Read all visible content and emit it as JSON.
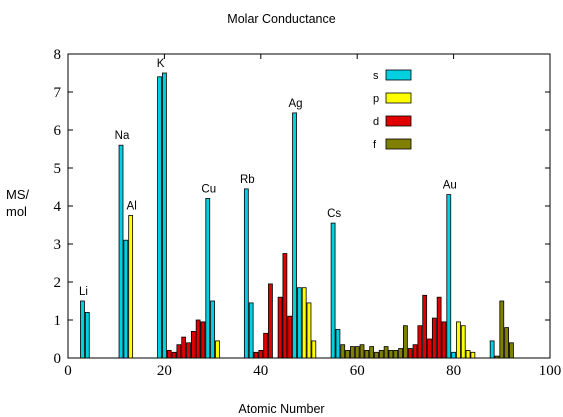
{
  "chart_data": {
    "type": "bar",
    "title": "Molar Conductance",
    "xlabel": "Atomic Number",
    "ylabel": [
      "MS/",
      "mol"
    ],
    "xlim": [
      0,
      100
    ],
    "ylim": [
      0,
      8
    ],
    "xticks": [
      0,
      20,
      40,
      60,
      80,
      100
    ],
    "yticks": [
      0,
      1,
      2,
      3,
      4,
      5,
      6,
      7,
      8
    ],
    "grid": false,
    "legend_position": "top-right",
    "colors": {
      "s": "#00d0e0",
      "p": "#ffff00",
      "d": "#e00000",
      "f": "#808000"
    },
    "series": [
      {
        "name": "s",
        "points": [
          [
            3,
            1.5
          ],
          [
            4,
            1.2
          ],
          [
            11,
            5.6
          ],
          [
            12,
            3.1
          ],
          [
            19,
            7.4
          ],
          [
            20,
            7.5
          ],
          [
            29,
            4.2
          ],
          [
            30,
            1.5
          ],
          [
            37,
            4.45
          ],
          [
            38,
            1.45
          ],
          [
            47,
            6.45
          ],
          [
            48,
            1.85
          ],
          [
            55,
            3.55
          ],
          [
            56,
            0.75
          ],
          [
            79,
            4.3
          ],
          [
            80,
            0.15
          ],
          [
            88,
            0.45
          ]
        ]
      },
      {
        "name": "p",
        "points": [
          [
            13,
            3.75
          ],
          [
            31,
            0.45
          ],
          [
            49,
            1.85
          ],
          [
            50,
            1.45
          ],
          [
            51,
            0.45
          ],
          [
            81,
            0.95
          ],
          [
            82,
            0.85
          ],
          [
            83,
            0.2
          ],
          [
            84,
            0.15
          ]
        ]
      },
      {
        "name": "d",
        "points": [
          [
            21,
            0.2
          ],
          [
            22,
            0.15
          ],
          [
            23,
            0.35
          ],
          [
            24,
            0.55
          ],
          [
            25,
            0.4
          ],
          [
            26,
            0.7
          ],
          [
            27,
            1.0
          ],
          [
            28,
            0.95
          ],
          [
            39,
            0.15
          ],
          [
            40,
            0.2
          ],
          [
            41,
            0.65
          ],
          [
            42,
            1.95
          ],
          [
            44,
            1.6
          ],
          [
            45,
            2.75
          ],
          [
            46,
            1.1
          ],
          [
            71,
            0.25
          ],
          [
            72,
            0.35
          ],
          [
            73,
            0.85
          ],
          [
            74,
            1.65
          ],
          [
            75,
            0.5
          ],
          [
            76,
            1.05
          ],
          [
            77,
            1.6
          ],
          [
            78,
            0.95
          ]
        ]
      },
      {
        "name": "f",
        "points": [
          [
            57,
            0.35
          ],
          [
            58,
            0.2
          ],
          [
            59,
            0.3
          ],
          [
            60,
            0.3
          ],
          [
            61,
            0.35
          ],
          [
            62,
            0.2
          ],
          [
            63,
            0.3
          ],
          [
            64,
            0.15
          ],
          [
            65,
            0.2
          ],
          [
            66,
            0.3
          ],
          [
            67,
            0.2
          ],
          [
            68,
            0.2
          ],
          [
            69,
            0.25
          ],
          [
            70,
            0.85
          ],
          [
            89,
            0.05
          ],
          [
            90,
            1.5
          ],
          [
            91,
            0.8
          ],
          [
            92,
            0.4
          ]
        ]
      }
    ],
    "annotations": [
      {
        "text": "Li",
        "x": 3,
        "y": 1.5
      },
      {
        "text": "Na",
        "x": 11,
        "y": 5.6
      },
      {
        "text": "Al",
        "x": 13,
        "y": 3.75
      },
      {
        "text": "K",
        "x": 19,
        "y": 7.5
      },
      {
        "text": "Cu",
        "x": 29,
        "y": 4.2
      },
      {
        "text": "Rb",
        "x": 37,
        "y": 4.45
      },
      {
        "text": "Ag",
        "x": 47,
        "y": 6.45
      },
      {
        "text": "Cs",
        "x": 55,
        "y": 3.55
      },
      {
        "text": "Au",
        "x": 79,
        "y": 4.3
      }
    ]
  }
}
